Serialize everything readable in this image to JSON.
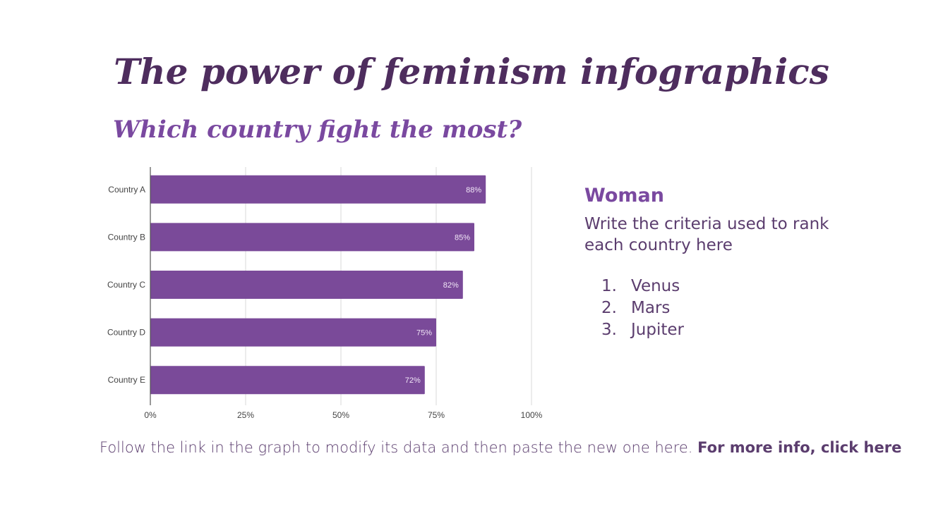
{
  "title": "The power of feminism infographics",
  "subtitle": "Which country fight the most?",
  "colors": {
    "bar": "#7a4a99",
    "title": "#4e2d5e",
    "accent": "#7a49a0",
    "grid": "#d9d9d9"
  },
  "chart_data": {
    "type": "bar",
    "orientation": "horizontal",
    "categories": [
      "Country A",
      "Country B",
      "Country C",
      "Country D",
      "Country E"
    ],
    "values": [
      88,
      85,
      82,
      75,
      72
    ],
    "data_labels": [
      "88%",
      "85%",
      "82%",
      "75%",
      "72%"
    ],
    "xlim": [
      0,
      100
    ],
    "xticks": [
      "0%",
      "25%",
      "50%",
      "75%",
      "100%"
    ],
    "grid": true,
    "title": "",
    "xlabel": "",
    "ylabel": ""
  },
  "side": {
    "heading": "Woman",
    "text": "Write the criteria used to rank each country here",
    "items": [
      {
        "num": "1.",
        "label": "Venus"
      },
      {
        "num": "2.",
        "label": "Mars"
      },
      {
        "num": "3.",
        "label": "Jupiter"
      }
    ]
  },
  "caption": {
    "text": "Follow the link in the graph to modify its data and then paste the new one here.",
    "link": "For more info, click here"
  }
}
